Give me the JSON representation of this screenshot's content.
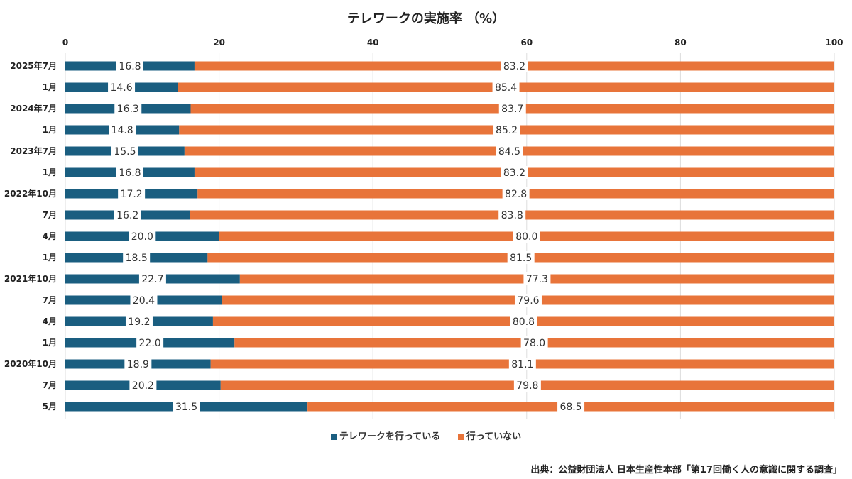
{
  "chart_data": {
    "type": "bar",
    "orientation": "horizontal",
    "stacked": true,
    "title": "テレワークの実施率 （%）",
    "categories": [
      "2025年7月",
      "1月",
      "2024年7月",
      "1月",
      "2023年7月",
      "1月",
      "2022年10月",
      "7月",
      "4月",
      "1月",
      "2021年10月",
      "7月",
      "4月",
      "1月",
      "2020年10月",
      "7月",
      "5月"
    ],
    "series": [
      {
        "name": "テレワークを行っている",
        "color": "#1a5e80",
        "values": [
          16.8,
          14.6,
          16.3,
          14.8,
          15.5,
          16.8,
          17.2,
          16.2,
          20.0,
          18.5,
          22.7,
          20.4,
          19.2,
          22.0,
          18.9,
          20.2,
          31.5
        ]
      },
      {
        "name": "行っていない",
        "color": "#e8743a",
        "values": [
          83.2,
          85.4,
          83.7,
          85.2,
          84.5,
          83.2,
          82.8,
          83.8,
          80.0,
          81.5,
          77.3,
          79.6,
          80.8,
          78.0,
          81.1,
          79.8,
          68.5
        ]
      }
    ],
    "xlim": [
      0,
      100
    ],
    "xticks": [
      0,
      20,
      40,
      60,
      80,
      100
    ],
    "grid": true,
    "axis_position": "top",
    "legend_position": "bottom"
  },
  "source": "出典：公益財団法人 日本生産性本部「第17回働く人の意識に関する調査」"
}
